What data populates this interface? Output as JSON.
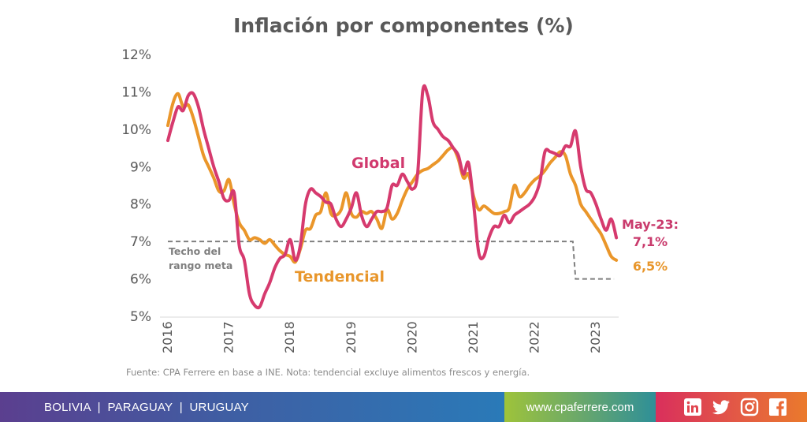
{
  "chart_data": {
    "type": "line",
    "title": "Inflación por componentes (%)",
    "xlabel": "",
    "ylabel": "",
    "ylim": [
      5,
      12
    ],
    "y_ticks": [
      "12%",
      "11%",
      "10%",
      "9%",
      "8%",
      "7%",
      "6%",
      "5%"
    ],
    "y_tick_values": [
      12,
      11,
      10,
      9,
      8,
      7,
      6,
      5
    ],
    "x_ticks": [
      "2016",
      "2017",
      "2018",
      "2019",
      "2020",
      "2021",
      "2022",
      "2023"
    ],
    "x_range": [
      "2016-01",
      "2023-05"
    ],
    "x_start_year": 2016,
    "frequency": "monthly",
    "grid": false,
    "legend": "inline labels",
    "series": [
      {
        "name": "Global",
        "color": "#d63a6e",
        "values": [
          9.7,
          10.2,
          10.6,
          10.5,
          10.9,
          10.95,
          10.6,
          10.0,
          9.5,
          9.0,
          8.6,
          8.15,
          8.1,
          8.3,
          6.9,
          6.5,
          5.6,
          5.3,
          5.25,
          5.6,
          5.9,
          6.3,
          6.55,
          6.65,
          7.05,
          6.5,
          6.9,
          8.0,
          8.4,
          8.3,
          8.2,
          8.05,
          8.0,
          7.6,
          7.4,
          7.6,
          7.9,
          8.3,
          7.7,
          7.4,
          7.6,
          7.8,
          7.8,
          7.9,
          8.5,
          8.5,
          8.8,
          8.6,
          8.4,
          8.8,
          11.0,
          10.9,
          10.2,
          10.0,
          9.8,
          9.7,
          9.5,
          9.3,
          8.8,
          9.1,
          8.0,
          6.7,
          6.6,
          7.1,
          7.4,
          7.4,
          7.7,
          7.5,
          7.7,
          7.8,
          7.9,
          8.0,
          8.2,
          8.6,
          9.4,
          9.4,
          9.35,
          9.3,
          9.55,
          9.55,
          9.95,
          9.0,
          8.4,
          8.3,
          8.0,
          7.6,
          7.3,
          7.6,
          7.1
        ]
      },
      {
        "name": "Tendencial",
        "color": "#ea962a",
        "values": [
          10.1,
          10.7,
          10.95,
          10.6,
          10.65,
          10.3,
          9.8,
          9.3,
          9.0,
          8.7,
          8.35,
          8.35,
          8.65,
          8.0,
          7.5,
          7.3,
          7.05,
          7.1,
          7.05,
          6.95,
          7.05,
          6.9,
          6.75,
          6.65,
          6.6,
          6.45,
          6.8,
          7.3,
          7.35,
          7.7,
          7.8,
          8.3,
          7.75,
          7.7,
          7.85,
          8.3,
          7.75,
          7.65,
          7.8,
          7.75,
          7.8,
          7.6,
          7.35,
          7.85,
          7.6,
          7.75,
          8.1,
          8.4,
          8.6,
          8.8,
          8.9,
          8.95,
          9.05,
          9.15,
          9.3,
          9.45,
          9.5,
          9.2,
          8.7,
          8.8,
          8.2,
          7.85,
          7.95,
          7.85,
          7.75,
          7.75,
          7.8,
          7.9,
          8.5,
          8.2,
          8.3,
          8.5,
          8.65,
          8.75,
          8.9,
          9.1,
          9.25,
          9.4,
          9.3,
          8.8,
          8.5,
          8.0,
          7.8,
          7.6,
          7.4,
          7.2,
          6.9,
          6.6,
          6.5
        ]
      },
      {
        "name": "Techo del rango meta",
        "color": "#7f7f7f",
        "style": "dashed",
        "segments": [
          {
            "from": "2016-01",
            "to": "2022-08",
            "value": 7.0
          },
          {
            "from": "2022-09",
            "to": "2023-05",
            "value": 6.0
          }
        ]
      }
    ],
    "annotations": {
      "global_label": "Global",
      "tendencial_label": "Tendencial",
      "target_label_line1": "Techo del",
      "target_label_line2": "rango meta",
      "last_period": "May-23:",
      "last_global": "7,1%",
      "last_tendencial": "6,5%"
    },
    "note": "Fuente: CPA Ferrere en base a INE. Nota: tendencial excluye alimentos frescos y energía."
  },
  "footer": {
    "countries": "BOLIVIA  |  PARAGUAY  |  URUGUAY",
    "website": "www.cpaferrere.com",
    "social_icons": [
      "linkedin-icon",
      "twitter-icon",
      "instagram-icon",
      "facebook-icon"
    ]
  }
}
